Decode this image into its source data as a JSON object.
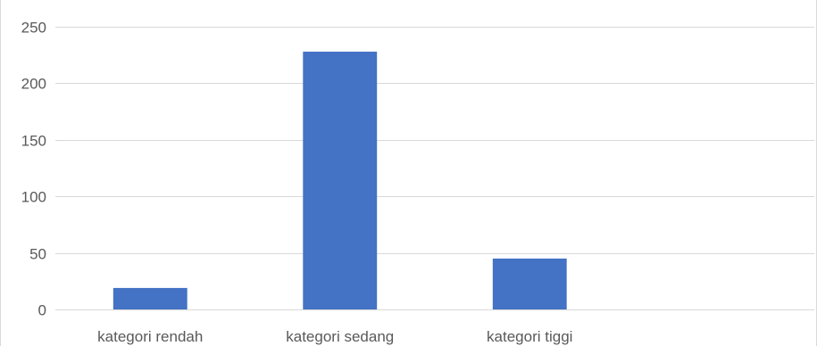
{
  "chart_data": {
    "type": "bar",
    "categories": [
      "kategori rendah",
      "kategori sedang",
      "kategori tiggi",
      ""
    ],
    "values": [
      19,
      228,
      45,
      null
    ],
    "ylim": [
      0,
      250
    ],
    "yticks": [
      0,
      50,
      100,
      150,
      200,
      250
    ],
    "grid": true,
    "legend": "none",
    "bar_color": "#4472C4",
    "grid_color": "#d9d9d9"
  }
}
